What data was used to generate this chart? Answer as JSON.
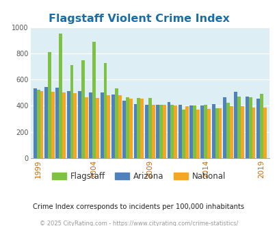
{
  "title": "Flagstaff Violent Crime Index",
  "years": [
    1999,
    2000,
    2001,
    2002,
    2003,
    2004,
    2005,
    2006,
    2007,
    2008,
    2009,
    2010,
    2011,
    2012,
    2013,
    2014,
    2015,
    2016,
    2017,
    2018,
    2019,
    2020,
    2021
  ],
  "flagstaff": [
    520,
    810,
    950,
    710,
    745,
    890,
    725,
    535,
    465,
    460,
    460,
    405,
    405,
    370,
    400,
    410,
    380,
    425,
    470,
    465,
    490,
    0,
    0
  ],
  "arizona": [
    535,
    545,
    540,
    510,
    510,
    500,
    500,
    485,
    440,
    415,
    410,
    405,
    430,
    405,
    400,
    400,
    415,
    465,
    505,
    470,
    455,
    0,
    0
  ],
  "national": [
    510,
    505,
    500,
    495,
    465,
    460,
    480,
    480,
    455,
    455,
    410,
    405,
    400,
    395,
    370,
    375,
    380,
    395,
    395,
    385,
    385,
    0,
    0
  ],
  "flagstaff_color": "#7dc242",
  "arizona_color": "#4f81bd",
  "national_color": "#f5a623",
  "bg_color": "#ddeef5",
  "ylim": [
    0,
    1000
  ],
  "yticks": [
    0,
    200,
    400,
    600,
    800,
    1000
  ],
  "xtick_labels": [
    "1999",
    "2004",
    "2009",
    "2014",
    "2019"
  ],
  "xtick_positions": [
    0,
    5,
    10,
    15,
    20
  ],
  "subtitle": "Crime Index corresponds to incidents per 100,000 inhabitants",
  "footer": "© 2025 CityRating.com - https://www.cityrating.com/crime-statistics/",
  "legend_labels": [
    "Flagstaff",
    "Arizona",
    "National"
  ],
  "bar_width": 0.3,
  "n_valid": 21
}
